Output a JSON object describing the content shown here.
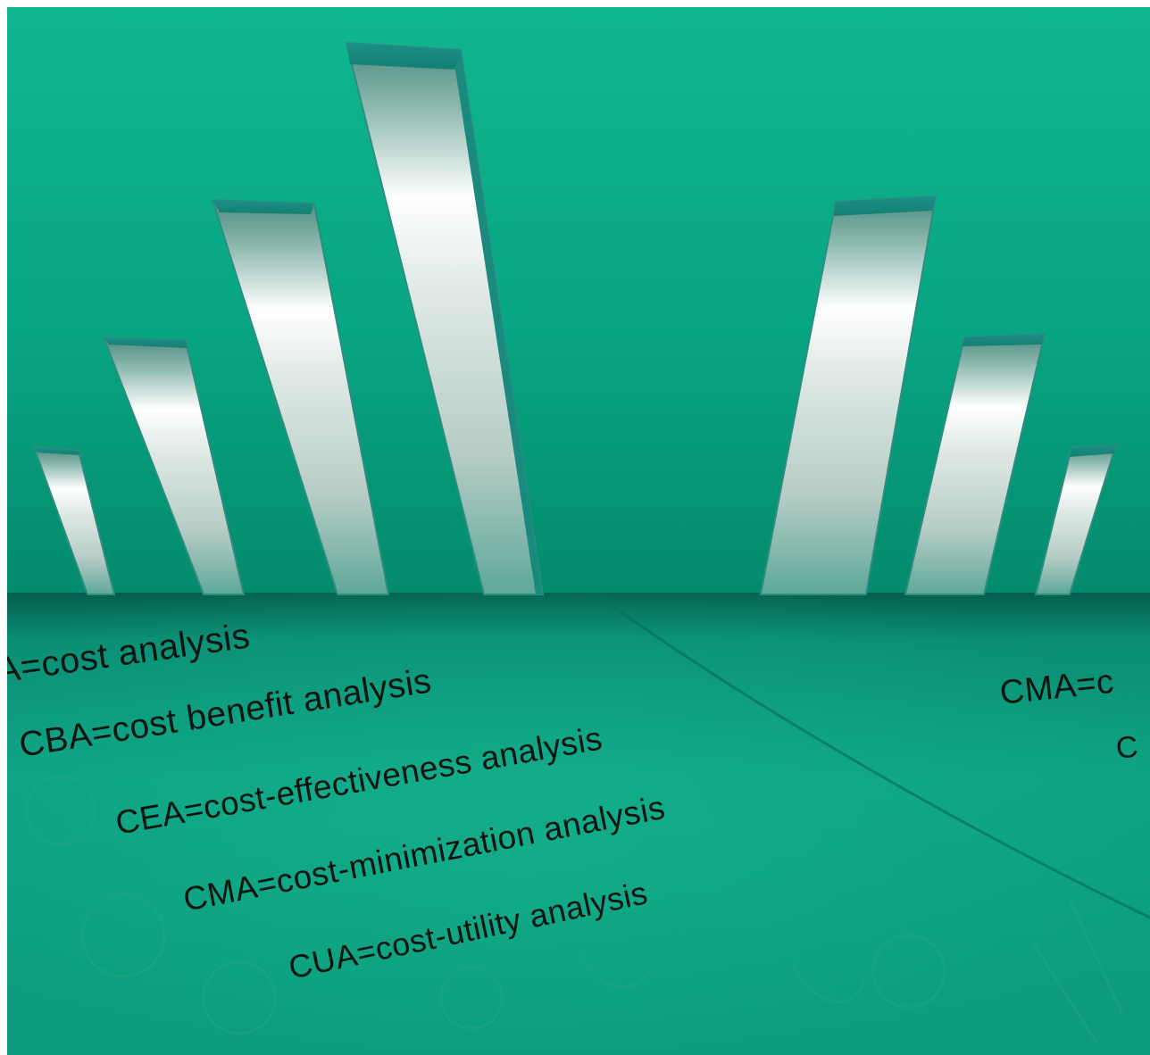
{
  "definitions": [
    {
      "id": "ca",
      "text": "A=cost analysis"
    },
    {
      "id": "cba",
      "text": "CBA=cost benefit analysis"
    },
    {
      "id": "cea",
      "text": "CEA=cost-effectiveness analysis"
    },
    {
      "id": "cma",
      "text": "CMA=cost-minimization analysis"
    },
    {
      "id": "cua",
      "text": "CUA=cost-utility analysis"
    }
  ],
  "right_fragments": [
    {
      "id": "cma-right",
      "text": "CMA=c"
    },
    {
      "id": "c-right",
      "text": "C"
    }
  ],
  "colors": {
    "background_top": "#10b690",
    "background_bottom": "#04866a",
    "table_surface": "#0ea383",
    "bar_steel": "#e8efec",
    "bar_edge": "#1a8c80",
    "text": "#0a1410"
  }
}
